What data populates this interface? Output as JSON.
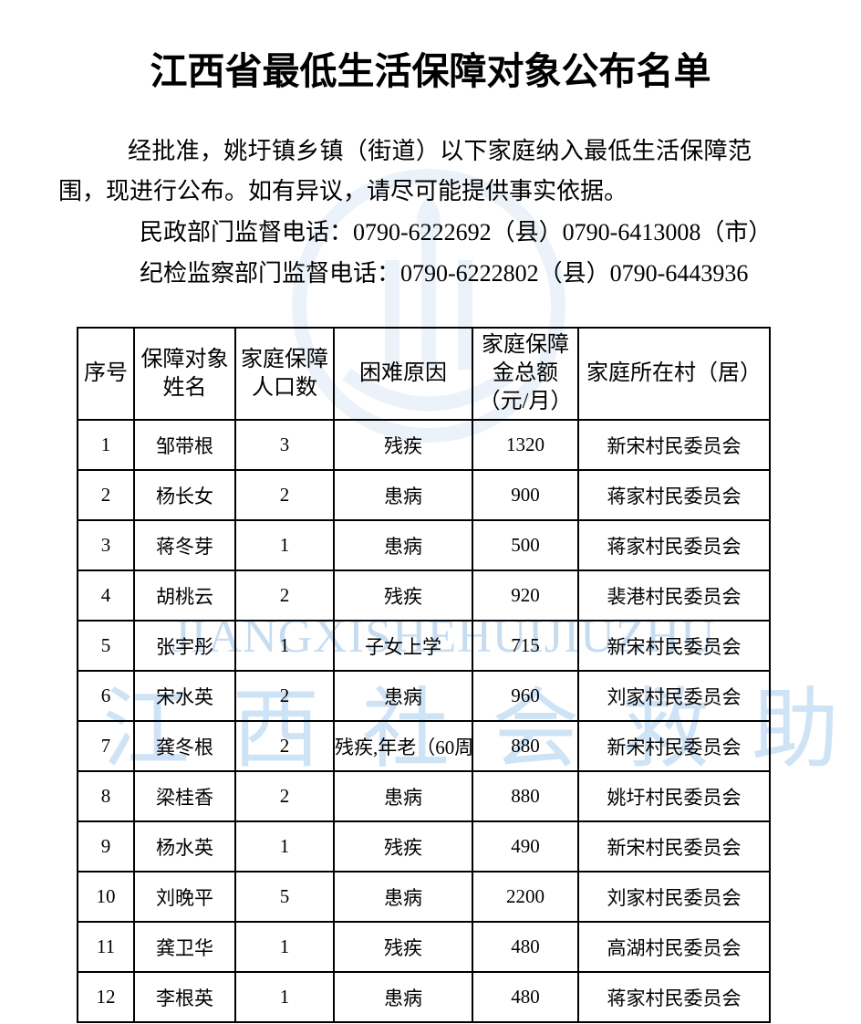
{
  "page": {
    "title": "江西省最低生活保障对象公布名单",
    "intro": "经批准，姚圩镇乡镇（街道）以下家庭纳入最低生活保障范围，现进行公布。如有异议，请尽可能提供事实依据。",
    "phone_line_1": "民政部门监督电话：0790-6222692（县）0790-6413008（市）",
    "phone_line_2": "纪检监察部门监督电话：0790-6222802（县）0790-6443936"
  },
  "watermark": {
    "latin_text": "JIANGXISHEHUIJIUZHU",
    "cjk_chars": [
      "江",
      "西",
      "社",
      "会",
      "救",
      "助"
    ],
    "latin_color": "#c6dcf1",
    "cjk_color": "#cfe3f6",
    "emblem_color": "#e9f1f9"
  },
  "table": {
    "headers": [
      "序号",
      "保障对象\n姓名",
      "家庭保障\n人口数",
      "困难原因",
      "家庭保障\n金总额\n（元/月）",
      "家庭所在村（居）"
    ],
    "col_names": [
      "cell-serial",
      "cell-name",
      "cell-population",
      "cell-reason",
      "cell-amount",
      "cell-village"
    ],
    "rows": [
      [
        "1",
        "邹带根",
        "3",
        "残疾",
        "1320",
        "新宋村民委员会"
      ],
      [
        "2",
        "杨长女",
        "2",
        "患病",
        "900",
        "蒋家村民委员会"
      ],
      [
        "3",
        "蒋冬芽",
        "1",
        "患病",
        "500",
        "蒋家村民委员会"
      ],
      [
        "4",
        "胡桃云",
        "2",
        "残疾",
        "920",
        "裴港村民委员会"
      ],
      [
        "5",
        "张宇彤",
        "1",
        "子女上学",
        "715",
        "新宋村民委员会"
      ],
      [
        "6",
        "宋水英",
        "2",
        "患病",
        "960",
        "刘家村民委员会"
      ],
      [
        "7",
        "龚冬根",
        "2",
        "残疾,年老（60周",
        "880",
        "新宋村民委员会"
      ],
      [
        "8",
        "梁桂香",
        "2",
        "患病",
        "880",
        "姚圩村民委员会"
      ],
      [
        "9",
        "杨水英",
        "1",
        "残疾",
        "490",
        "新宋村民委员会"
      ],
      [
        "10",
        "刘晚平",
        "5",
        "患病",
        "2200",
        "刘家村民委员会"
      ],
      [
        "11",
        "龚卫华",
        "1",
        "残疾",
        "480",
        "高湖村民委员会"
      ],
      [
        "12",
        "李根英",
        "1",
        "患病",
        "480",
        "蒋家村民委员会"
      ]
    ]
  }
}
